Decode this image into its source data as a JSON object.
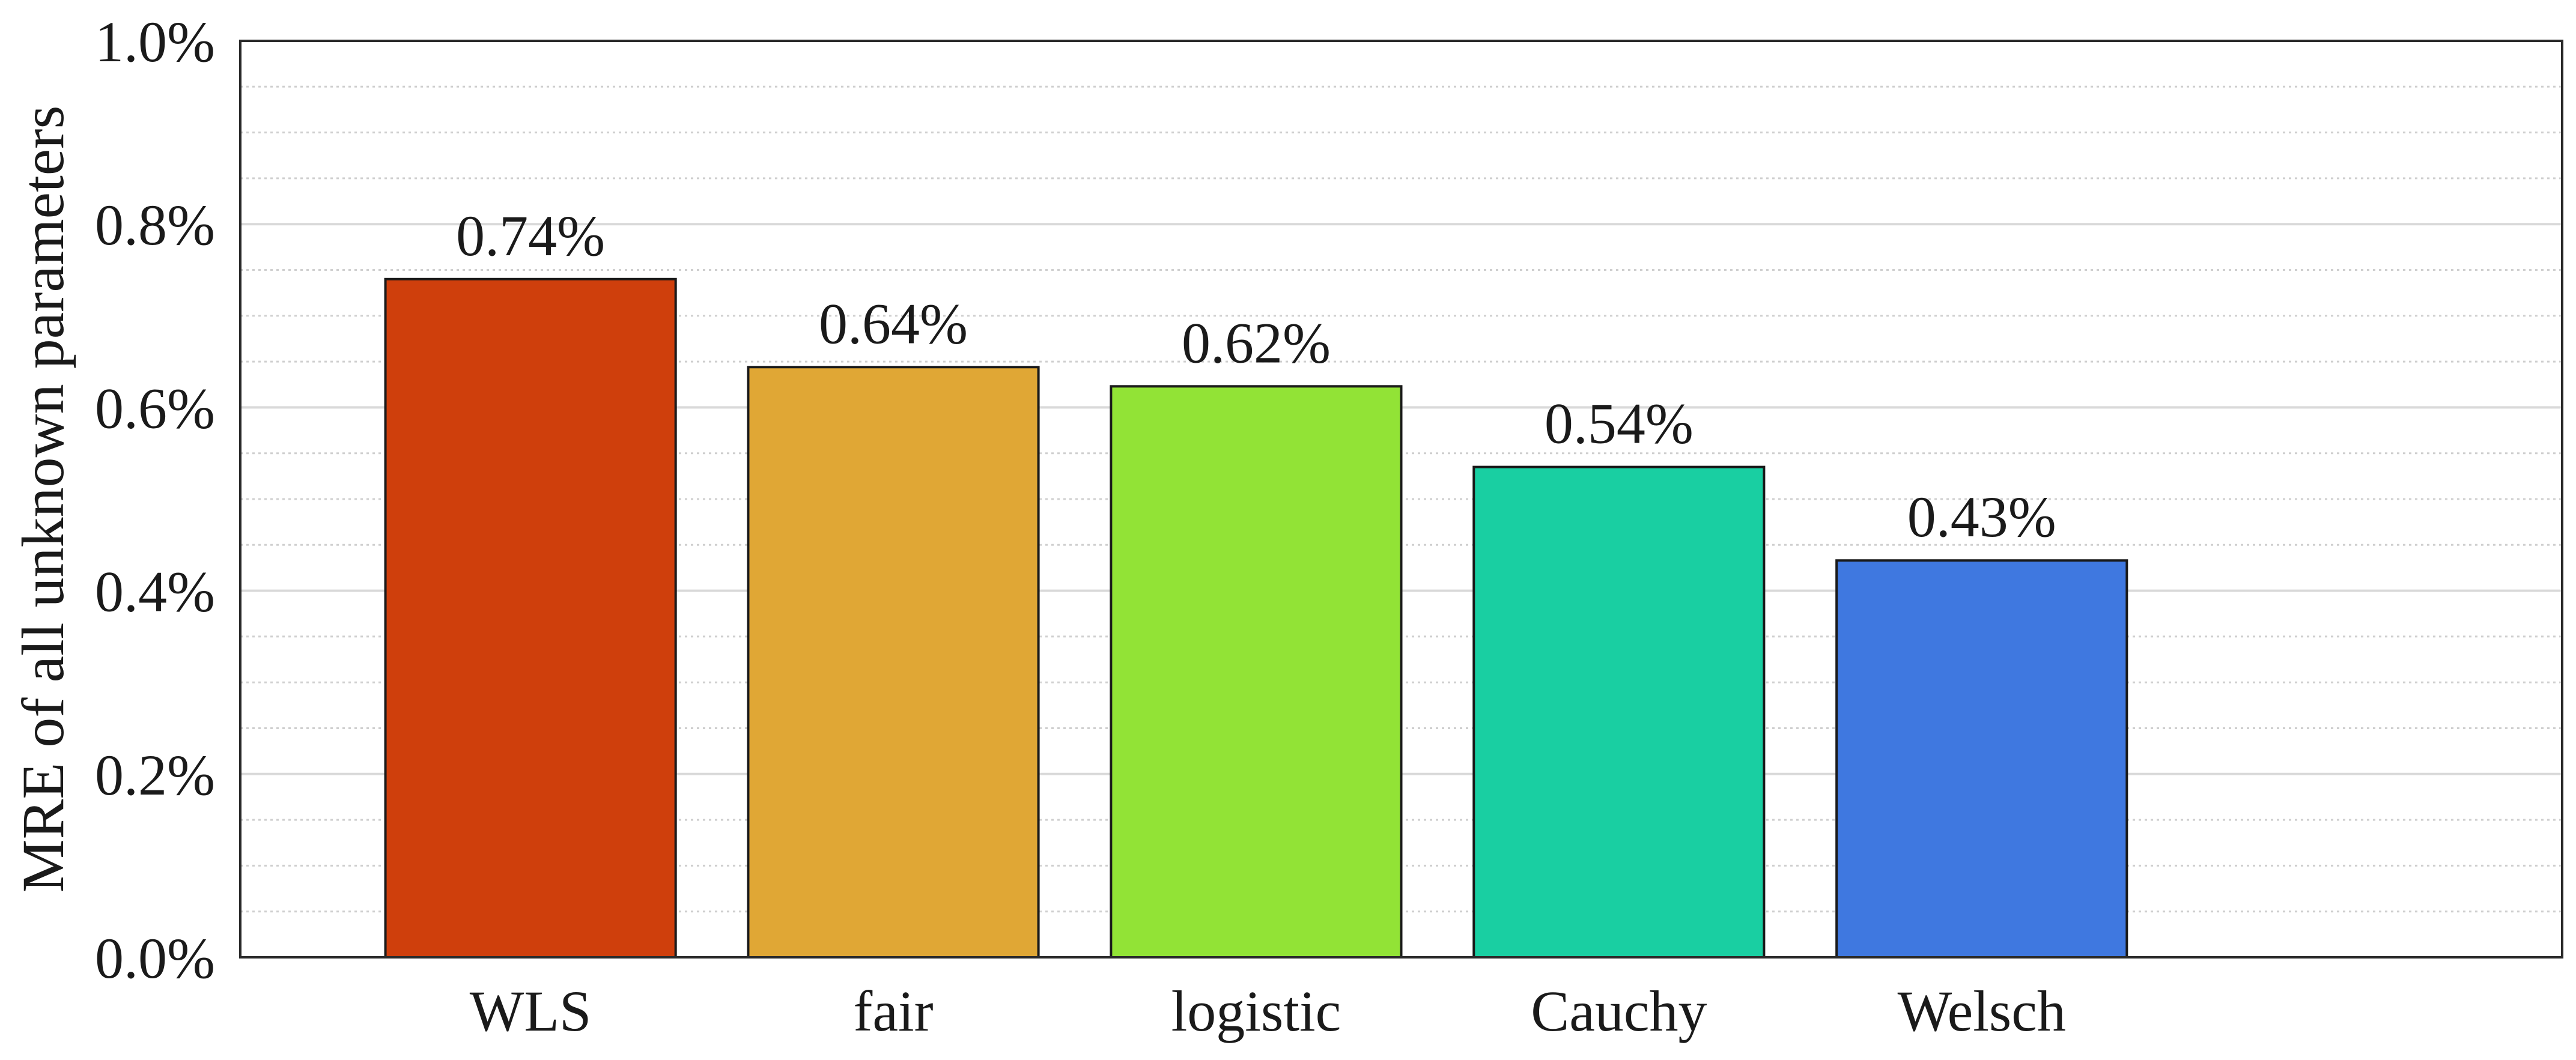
{
  "chart_data": {
    "type": "bar",
    "title": "",
    "xlabel": "",
    "ylabel": "MRE of all unknown parameters",
    "categories": [
      "WLS",
      "fair",
      "logistic",
      "Cauchy",
      "Welsch"
    ],
    "values": [
      0.74,
      0.644,
      0.623,
      0.535,
      0.433
    ],
    "value_labels": [
      "0.74%",
      "0.64%",
      "0.62%",
      "0.54%",
      "0.43%"
    ],
    "colors": [
      "#CF3F0C",
      "#E0A735",
      "#92E336",
      "#19CFA2",
      "#3F78E0"
    ],
    "ylim": [
      0,
      1.0
    ],
    "yticks": [
      0,
      0.2,
      0.4,
      0.6,
      0.8,
      1.0
    ],
    "ytick_labels": [
      "0.0%",
      "0.2%",
      "0.4%",
      "0.6%",
      "0.8%",
      "1.0%"
    ],
    "minor_step": 0.05,
    "grid": true,
    "x_range": [
      -0.8,
      5.6
    ]
  }
}
